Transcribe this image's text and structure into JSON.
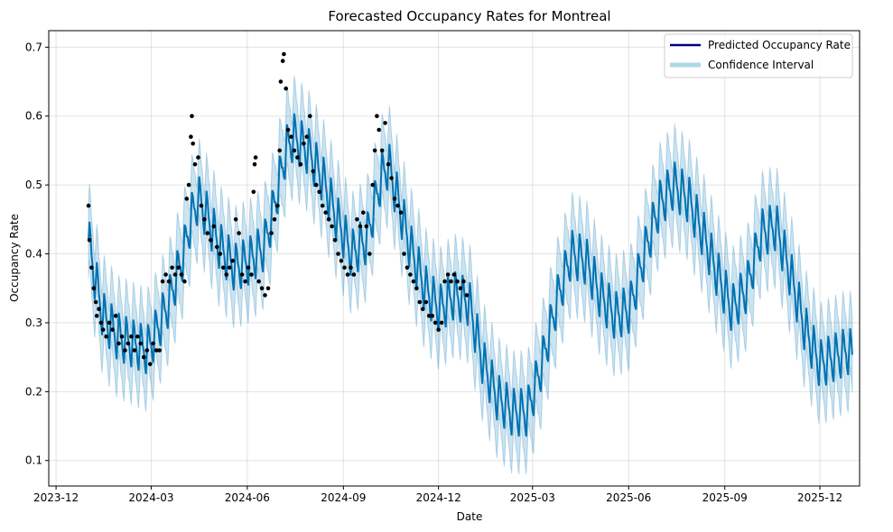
{
  "chart_data": {
    "type": "line",
    "title": "Forecasted Occupancy Rates for Montreal",
    "xlabel": "Date",
    "ylabel": "Occupancy Rate",
    "x_ticks": [
      "2023-12",
      "2024-03",
      "2024-06",
      "2024-09",
      "2024-12",
      "2025-03",
      "2025-06",
      "2025-09",
      "2025-12"
    ],
    "x_tick_dates": [
      "2023-12-01",
      "2024-03-01",
      "2024-06-01",
      "2024-09-01",
      "2024-12-01",
      "2025-03-01",
      "2025-06-01",
      "2025-09-01",
      "2025-12-01"
    ],
    "xlim": [
      "2023-11-24",
      "2026-01-08"
    ],
    "y_ticks": [
      0.1,
      0.2,
      0.3,
      0.4,
      0.5,
      0.6,
      0.7
    ],
    "ylim": [
      0.063,
      0.724
    ],
    "grid": true,
    "legend_position": "top-right",
    "legend": [
      {
        "label": "Predicted Occupancy Rate",
        "color": "#000080"
      },
      {
        "label": "Confidence Interval",
        "color": "#add8e6"
      }
    ],
    "colors": {
      "forecast": "#0072b2",
      "band": "#0072b2",
      "observed": "#000000"
    },
    "ci_half_width": 0.055,
    "weekly_amplitude": 0.03,
    "forecast_trend": [
      [
        "2024-01-01",
        0.42
      ],
      [
        "2024-01-08",
        0.36
      ],
      [
        "2024-01-15",
        0.31
      ],
      [
        "2024-01-29",
        0.28
      ],
      [
        "2024-02-12",
        0.27
      ],
      [
        "2024-02-26",
        0.26
      ],
      [
        "2024-03-04",
        0.28
      ],
      [
        "2024-03-18",
        0.33
      ],
      [
        "2024-04-01",
        0.4
      ],
      [
        "2024-04-08",
        0.45
      ],
      [
        "2024-04-15",
        0.48
      ],
      [
        "2024-04-22",
        0.46
      ],
      [
        "2024-05-06",
        0.41
      ],
      [
        "2024-05-20",
        0.38
      ],
      [
        "2024-06-03",
        0.39
      ],
      [
        "2024-06-17",
        0.41
      ],
      [
        "2024-06-24",
        0.45
      ],
      [
        "2024-07-08",
        0.55
      ],
      [
        "2024-07-15",
        0.57
      ],
      [
        "2024-07-29",
        0.55
      ],
      [
        "2024-08-12",
        0.51
      ],
      [
        "2024-08-26",
        0.45
      ],
      [
        "2024-09-09",
        0.4
      ],
      [
        "2024-09-23",
        0.42
      ],
      [
        "2024-10-07",
        0.51
      ],
      [
        "2024-10-14",
        0.53
      ],
      [
        "2024-10-21",
        0.49
      ],
      [
        "2024-11-04",
        0.41
      ],
      [
        "2024-11-18",
        0.35
      ],
      [
        "2024-12-02",
        0.32
      ],
      [
        "2024-12-16",
        0.34
      ],
      [
        "2024-12-30",
        0.33
      ],
      [
        "2025-01-13",
        0.24
      ],
      [
        "2025-01-27",
        0.19
      ],
      [
        "2025-02-10",
        0.17
      ],
      [
        "2025-02-24",
        0.17
      ],
      [
        "2025-03-10",
        0.24
      ],
      [
        "2025-03-24",
        0.33
      ],
      [
        "2025-04-07",
        0.4
      ],
      [
        "2025-04-21",
        0.39
      ],
      [
        "2025-05-05",
        0.34
      ],
      [
        "2025-05-19",
        0.31
      ],
      [
        "2025-06-02",
        0.32
      ],
      [
        "2025-06-16",
        0.4
      ],
      [
        "2025-06-30",
        0.47
      ],
      [
        "2025-07-14",
        0.5
      ],
      [
        "2025-07-28",
        0.48
      ],
      [
        "2025-08-11",
        0.43
      ],
      [
        "2025-08-25",
        0.37
      ],
      [
        "2025-09-08",
        0.32
      ],
      [
        "2025-09-22",
        0.35
      ],
      [
        "2025-10-06",
        0.43
      ],
      [
        "2025-10-20",
        0.44
      ],
      [
        "2025-11-03",
        0.37
      ],
      [
        "2025-11-17",
        0.29
      ],
      [
        "2025-12-01",
        0.24
      ],
      [
        "2025-12-15",
        0.25
      ],
      [
        "2025-12-29",
        0.26
      ],
      [
        "2026-01-01",
        0.25
      ]
    ],
    "observed_points": [
      [
        "2024-01-01",
        0.47
      ],
      [
        "2024-01-02",
        0.42
      ],
      [
        "2024-01-04",
        0.38
      ],
      [
        "2024-01-06",
        0.35
      ],
      [
        "2024-01-08",
        0.33
      ],
      [
        "2024-01-09",
        0.31
      ],
      [
        "2024-01-11",
        0.32
      ],
      [
        "2024-01-13",
        0.3
      ],
      [
        "2024-01-15",
        0.29
      ],
      [
        "2024-01-18",
        0.28
      ],
      [
        "2024-01-21",
        0.3
      ],
      [
        "2024-01-24",
        0.29
      ],
      [
        "2024-01-27",
        0.31
      ],
      [
        "2024-01-30",
        0.27
      ],
      [
        "2024-02-02",
        0.28
      ],
      [
        "2024-02-05",
        0.26
      ],
      [
        "2024-02-08",
        0.27
      ],
      [
        "2024-02-11",
        0.28
      ],
      [
        "2024-02-14",
        0.26
      ],
      [
        "2024-02-17",
        0.28
      ],
      [
        "2024-02-20",
        0.27
      ],
      [
        "2024-02-23",
        0.25
      ],
      [
        "2024-02-26",
        0.26
      ],
      [
        "2024-02-29",
        0.24
      ],
      [
        "2024-03-03",
        0.27
      ],
      [
        "2024-03-06",
        0.26
      ],
      [
        "2024-03-09",
        0.26
      ],
      [
        "2024-03-12",
        0.36
      ],
      [
        "2024-03-15",
        0.37
      ],
      [
        "2024-03-18",
        0.36
      ],
      [
        "2024-03-21",
        0.38
      ],
      [
        "2024-03-24",
        0.37
      ],
      [
        "2024-03-27",
        0.38
      ],
      [
        "2024-03-30",
        0.37
      ],
      [
        "2024-04-02",
        0.36
      ],
      [
        "2024-04-04",
        0.48
      ],
      [
        "2024-04-06",
        0.5
      ],
      [
        "2024-04-08",
        0.57
      ],
      [
        "2024-04-09",
        0.6
      ],
      [
        "2024-04-10",
        0.56
      ],
      [
        "2024-04-12",
        0.53
      ],
      [
        "2024-04-15",
        0.54
      ],
      [
        "2024-04-18",
        0.47
      ],
      [
        "2024-04-21",
        0.45
      ],
      [
        "2024-04-24",
        0.43
      ],
      [
        "2024-04-27",
        0.42
      ],
      [
        "2024-04-30",
        0.44
      ],
      [
        "2024-05-03",
        0.41
      ],
      [
        "2024-05-06",
        0.4
      ],
      [
        "2024-05-09",
        0.38
      ],
      [
        "2024-05-12",
        0.37
      ],
      [
        "2024-05-15",
        0.38
      ],
      [
        "2024-05-18",
        0.39
      ],
      [
        "2024-05-21",
        0.45
      ],
      [
        "2024-05-24",
        0.43
      ],
      [
        "2024-05-27",
        0.37
      ],
      [
        "2024-05-30",
        0.36
      ],
      [
        "2024-06-02",
        0.38
      ],
      [
        "2024-06-05",
        0.37
      ],
      [
        "2024-06-07",
        0.49
      ],
      [
        "2024-06-08",
        0.53
      ],
      [
        "2024-06-09",
        0.54
      ],
      [
        "2024-06-12",
        0.36
      ],
      [
        "2024-06-15",
        0.35
      ],
      [
        "2024-06-18",
        0.34
      ],
      [
        "2024-06-21",
        0.35
      ],
      [
        "2024-06-24",
        0.43
      ],
      [
        "2024-06-27",
        0.45
      ],
      [
        "2024-06-30",
        0.47
      ],
      [
        "2024-07-02",
        0.55
      ],
      [
        "2024-07-03",
        0.65
      ],
      [
        "2024-07-05",
        0.68
      ],
      [
        "2024-07-06",
        0.69
      ],
      [
        "2024-07-08",
        0.64
      ],
      [
        "2024-07-10",
        0.58
      ],
      [
        "2024-07-13",
        0.57
      ],
      [
        "2024-07-16",
        0.55
      ],
      [
        "2024-07-19",
        0.54
      ],
      [
        "2024-07-22",
        0.53
      ],
      [
        "2024-07-25",
        0.56
      ],
      [
        "2024-07-28",
        0.57
      ],
      [
        "2024-07-31",
        0.6
      ],
      [
        "2024-08-03",
        0.52
      ],
      [
        "2024-08-06",
        0.5
      ],
      [
        "2024-08-09",
        0.49
      ],
      [
        "2024-08-12",
        0.47
      ],
      [
        "2024-08-15",
        0.46
      ],
      [
        "2024-08-18",
        0.45
      ],
      [
        "2024-08-21",
        0.44
      ],
      [
        "2024-08-24",
        0.42
      ],
      [
        "2024-08-27",
        0.4
      ],
      [
        "2024-08-30",
        0.39
      ],
      [
        "2024-09-02",
        0.38
      ],
      [
        "2024-09-05",
        0.37
      ],
      [
        "2024-09-08",
        0.38
      ],
      [
        "2024-09-11",
        0.37
      ],
      [
        "2024-09-14",
        0.45
      ],
      [
        "2024-09-17",
        0.44
      ],
      [
        "2024-09-20",
        0.46
      ],
      [
        "2024-09-23",
        0.44
      ],
      [
        "2024-09-26",
        0.4
      ],
      [
        "2024-09-29",
        0.5
      ],
      [
        "2024-10-01",
        0.55
      ],
      [
        "2024-10-03",
        0.6
      ],
      [
        "2024-10-05",
        0.58
      ],
      [
        "2024-10-08",
        0.55
      ],
      [
        "2024-10-11",
        0.59
      ],
      [
        "2024-10-14",
        0.53
      ],
      [
        "2024-10-17",
        0.51
      ],
      [
        "2024-10-20",
        0.48
      ],
      [
        "2024-10-23",
        0.47
      ],
      [
        "2024-10-26",
        0.46
      ],
      [
        "2024-10-29",
        0.4
      ],
      [
        "2024-11-01",
        0.38
      ],
      [
        "2024-11-04",
        0.37
      ],
      [
        "2024-11-07",
        0.36
      ],
      [
        "2024-11-10",
        0.35
      ],
      [
        "2024-11-13",
        0.33
      ],
      [
        "2024-11-16",
        0.32
      ],
      [
        "2024-11-19",
        0.33
      ],
      [
        "2024-11-22",
        0.31
      ],
      [
        "2024-11-25",
        0.31
      ],
      [
        "2024-11-28",
        0.3
      ],
      [
        "2024-12-01",
        0.29
      ],
      [
        "2024-12-04",
        0.3
      ],
      [
        "2024-12-07",
        0.36
      ],
      [
        "2024-12-10",
        0.37
      ],
      [
        "2024-12-13",
        0.36
      ],
      [
        "2024-12-16",
        0.37
      ],
      [
        "2024-12-19",
        0.36
      ],
      [
        "2024-12-22",
        0.35
      ],
      [
        "2024-12-25",
        0.36
      ],
      [
        "2024-12-28",
        0.34
      ]
    ]
  }
}
